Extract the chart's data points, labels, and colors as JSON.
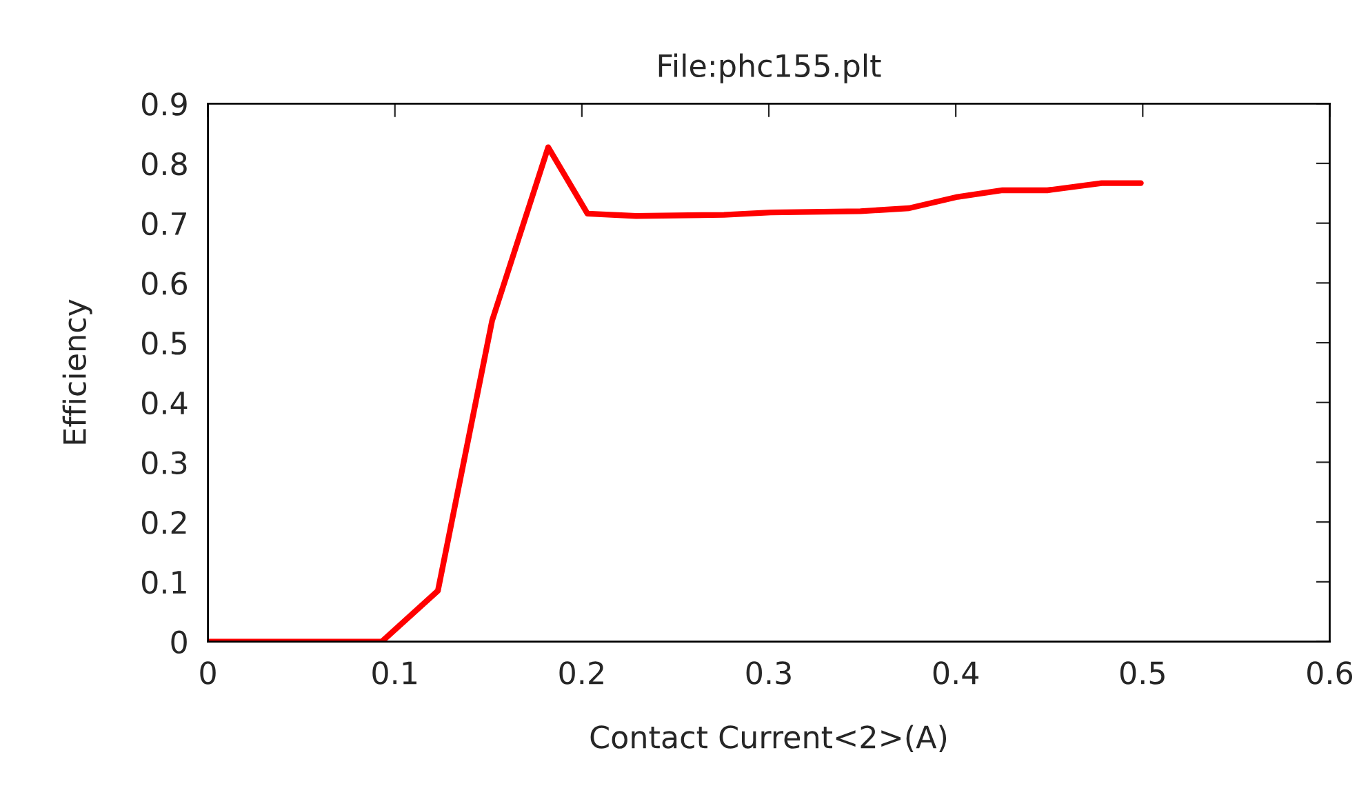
{
  "chart_data": {
    "type": "line",
    "title": "File:phc155.plt",
    "xlabel": "Contact Current<2>(A)",
    "ylabel": "Efficiency",
    "x": [
      0,
      0.093,
      0.123,
      0.152,
      0.182,
      0.203,
      0.229,
      0.276,
      0.301,
      0.349,
      0.375,
      0.401,
      0.425,
      0.449,
      0.478,
      0.499
    ],
    "series": [
      {
        "color": "#ff0000",
        "values": [
          0,
          0,
          0.085,
          0.537,
          0.827,
          0.716,
          0.712,
          0.714,
          0.718,
          0.72,
          0.725,
          0.744,
          0.755,
          0.755,
          0.767,
          0.767
        ]
      }
    ],
    "xlim": [
      0,
      0.6
    ],
    "xticks": [
      0,
      0.1,
      0.2,
      0.3,
      0.4,
      0.5,
      0.6
    ],
    "ylim": [
      0,
      0.9
    ],
    "yticks": [
      0,
      0.1,
      0.2,
      0.3,
      0.4,
      0.5,
      0.6,
      0.7,
      0.8,
      0.9
    ],
    "grid": false,
    "marker": "none",
    "line_style": "solid"
  }
}
